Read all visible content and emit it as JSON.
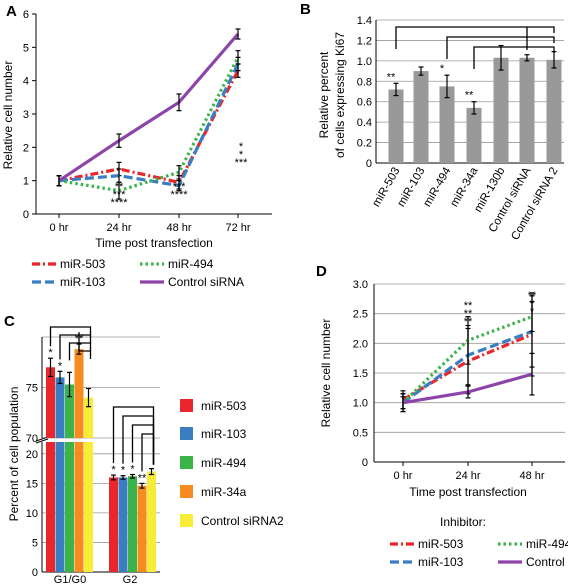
{
  "chart_data": [
    {
      "panel": "A",
      "type": "line",
      "xlabel": "Time post transfection",
      "ylabel": "Relative cell number",
      "categories": [
        "0 hr",
        "24 hr",
        "48 hr",
        "72 hr"
      ],
      "ylim": [
        0,
        6
      ],
      "yticks": [
        "0",
        "1",
        "2",
        "3",
        "4",
        "5",
        "6"
      ],
      "grid": false,
      "legend_position": "bottom",
      "series": [
        {
          "name": "miR-503",
          "color": "#e8262b",
          "dash": "dashdot",
          "values": [
            1.0,
            1.35,
            0.95,
            4.3
          ],
          "errors": [
            0.15,
            0.2,
            0.2,
            0.2
          ]
        },
        {
          "name": "miR-103",
          "color": "#3a7dc1",
          "dash": "dash",
          "values": [
            1.0,
            1.15,
            0.85,
            4.5
          ],
          "errors": [
            0.15,
            0.2,
            0.15,
            0.2
          ]
        },
        {
          "name": "miR-494",
          "color": "#3bb44a",
          "dash": "dot",
          "values": [
            1.0,
            0.7,
            1.25,
            4.7
          ],
          "errors": [
            0.15,
            0.25,
            0.2,
            0.2
          ]
        },
        {
          "name": "Control siRNA",
          "color": "#8d44a9",
          "dash": "solid",
          "values": [
            1.0,
            2.2,
            3.35,
            5.4
          ],
          "errors": [
            0.15,
            0.2,
            0.25,
            0.15
          ]
        }
      ],
      "annotations": [
        {
          "x": "24 hr",
          "lines": [
            "**",
            "***",
            "****"
          ]
        },
        {
          "x": "48 hr",
          "lines": [
            "***",
            "****"
          ]
        },
        {
          "x": "72 hr",
          "lines": [
            "*",
            "*",
            "***"
          ]
        }
      ]
    },
    {
      "panel": "B",
      "type": "bar",
      "ylabel": "Relative percent of cells expressing Ki67",
      "ylabel_lines": [
        "Relative percent",
        "of cells expressing Ki67"
      ],
      "categories": [
        "miR-503",
        "miR-103",
        "miR-494",
        "miR-34a",
        "miR-130b",
        "Control siRNA",
        "Control siRNA 2"
      ],
      "values": [
        0.72,
        0.9,
        0.75,
        0.54,
        1.03,
        1.03,
        1.01
      ],
      "errors": [
        0.06,
        0.04,
        0.11,
        0.06,
        0.12,
        0.03,
        0.08
      ],
      "ylim": [
        0,
        1.4
      ],
      "yticks": [
        "0",
        "0.2",
        "0.4",
        "0.6",
        "0.8",
        "1.0",
        "1.2",
        "1.4"
      ],
      "bar_color": "#999999",
      "grid": true,
      "significance": [
        "**",
        "",
        "*",
        "**",
        "",
        "",
        ""
      ]
    },
    {
      "panel": "C",
      "type": "bar",
      "ylabel": "Percent of cell population",
      "categories": [
        "G1/G0",
        "G2"
      ],
      "axis_break": true,
      "upper_yticks": [
        "70",
        "75"
      ],
      "lower_yticks": [
        "0",
        "5",
        "10",
        "15",
        "20"
      ],
      "grid": true,
      "legend_position": "right",
      "series": [
        {
          "name": "miR-503",
          "color": "#e8262b",
          "values": [
            77,
            16
          ],
          "errors": [
            0.9,
            0.4
          ],
          "significance": [
            "*",
            "*"
          ]
        },
        {
          "name": "miR-103",
          "color": "#3a7dc1",
          "values": [
            76,
            16
          ],
          "errors": [
            0.6,
            0.3
          ],
          "significance": [
            "*",
            "*"
          ]
        },
        {
          "name": "miR-494",
          "color": "#3bb44a",
          "values": [
            75.3,
            16.2
          ],
          "errors": [
            1.2,
            0.3
          ],
          "significance": [
            "",
            "*"
          ]
        },
        {
          "name": "miR-34a",
          "color": "#f68b1f",
          "values": [
            78.8,
            14.6
          ],
          "errors": [
            0.5,
            0.4
          ],
          "significance": [
            "**",
            "**"
          ]
        },
        {
          "name": "Control siRNA2",
          "color": "#f7ec37",
          "values": [
            74,
            17
          ],
          "errors": [
            0.9,
            0.5
          ],
          "significance": [
            "",
            ""
          ]
        }
      ]
    },
    {
      "panel": "D",
      "type": "line",
      "xlabel": "Time post transfection",
      "ylabel": "Relative cell number",
      "categories": [
        "0 hr",
        "24 hr",
        "48 hr"
      ],
      "ylim": [
        0,
        3.0
      ],
      "yticks": [
        "0",
        "0.5",
        "1.0",
        "1.5",
        "2.0",
        "2.5",
        "3.0"
      ],
      "grid": true,
      "legend_title": "Inhibitor:",
      "legend_position": "bottom",
      "series": [
        {
          "name": "miR-503",
          "color": "#e8262b",
          "dash": "dashdot",
          "values": [
            1.05,
            1.7,
            2.15
          ],
          "errors": [
            0.15,
            0.55,
            0.7
          ]
        },
        {
          "name": "miR-103",
          "color": "#3a7dc1",
          "dash": "dash",
          "values": [
            1.0,
            1.8,
            2.2
          ],
          "errors": [
            0.15,
            0.5,
            0.6
          ]
        },
        {
          "name": "miR-494",
          "color": "#3bb44a",
          "dash": "dot",
          "values": [
            1.0,
            2.05,
            2.45
          ],
          "errors": [
            0.15,
            0.4,
            0.25
          ]
        },
        {
          "name": "Control",
          "color": "#8d44a9",
          "dash": "solid",
          "values": [
            1.0,
            1.18,
            1.48
          ],
          "errors": [
            0.1,
            0.1,
            0.35
          ]
        }
      ],
      "annotations": [
        {
          "x": "24 hr",
          "lines": [
            "**",
            "**",
            "**"
          ]
        },
        {
          "x": "48 hr",
          "lines": [
            "**",
            "*",
            "*"
          ]
        }
      ]
    }
  ],
  "panel_labels": {
    "a": "A",
    "b": "B",
    "c": "C",
    "d": "D"
  }
}
